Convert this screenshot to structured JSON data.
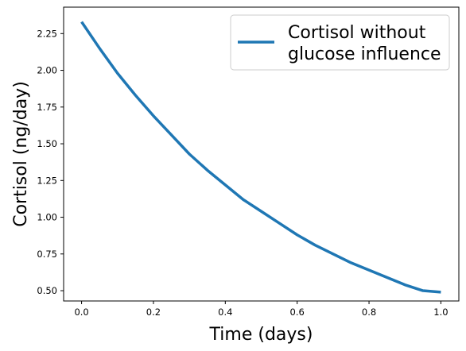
{
  "chart_data": {
    "type": "line",
    "xlabel": "Time (days)",
    "ylabel": "Cortisol (ng/day)",
    "xlim": [
      -0.05,
      1.05
    ],
    "ylim": [
      0.43,
      2.43
    ],
    "xticks": [
      0.0,
      0.2,
      0.4,
      0.6,
      0.8,
      1.0
    ],
    "xtick_labels": [
      "0.0",
      "0.2",
      "0.4",
      "0.6",
      "0.8",
      "1.0"
    ],
    "yticks": [
      0.5,
      0.75,
      1.0,
      1.25,
      1.5,
      1.75,
      2.0,
      2.25
    ],
    "ytick_labels": [
      "0.50",
      "0.75",
      "1.00",
      "1.25",
      "1.50",
      "1.75",
      "2.00",
      "2.25"
    ],
    "grid": false,
    "legend_position": "top-right",
    "series": [
      {
        "name": "Cortisol without glucose influence",
        "legend_lines": [
          "Cortisol without",
          "glucose influence"
        ],
        "color": "#1f77b4",
        "x": [
          0.0,
          0.05,
          0.1,
          0.15,
          0.2,
          0.25,
          0.3,
          0.35,
          0.4,
          0.45,
          0.5,
          0.55,
          0.6,
          0.65,
          0.7,
          0.75,
          0.8,
          0.85,
          0.9,
          0.95,
          1.0
        ],
        "y": [
          2.33,
          2.15,
          1.98,
          1.83,
          1.69,
          1.56,
          1.43,
          1.32,
          1.22,
          1.12,
          1.04,
          0.96,
          0.88,
          0.81,
          0.75,
          0.69,
          0.64,
          0.59,
          0.54,
          0.5,
          0.49
        ]
      }
    ]
  }
}
